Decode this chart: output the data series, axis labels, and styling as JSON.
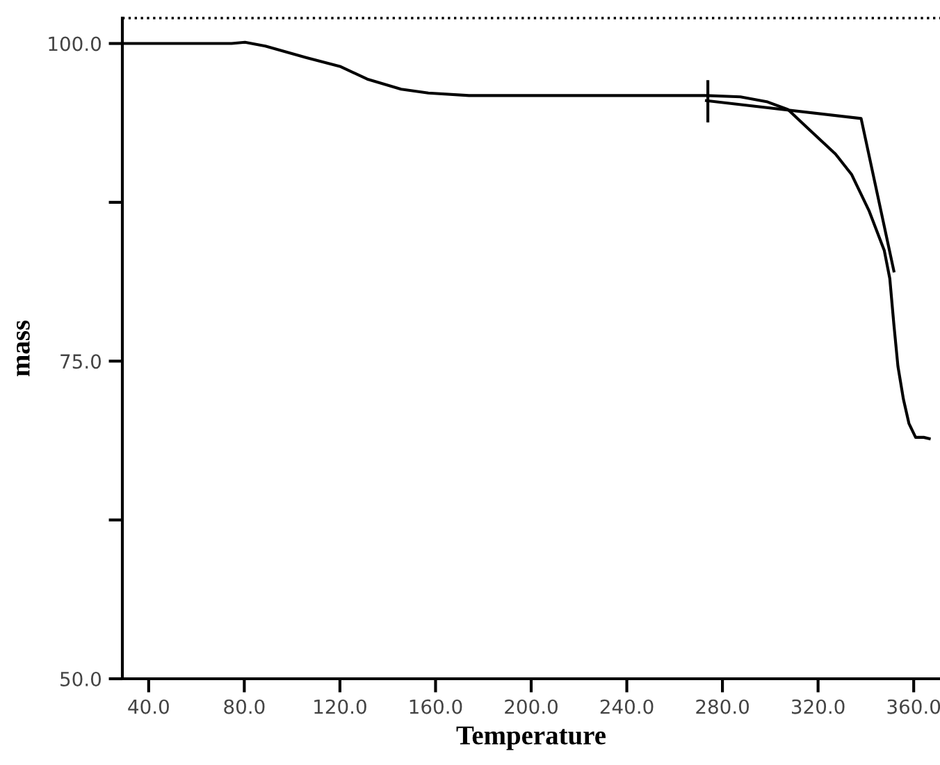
{
  "chart_data": {
    "type": "line",
    "xlabel": "Temperature",
    "ylabel": "mass",
    "xlim": [
      29,
      371
    ],
    "ylim": [
      50,
      102
    ],
    "xticks": [
      {
        "value": 40,
        "label": "40.0"
      },
      {
        "value": 80,
        "label": "80.0"
      },
      {
        "value": 120,
        "label": "120.0"
      },
      {
        "value": 160,
        "label": "160.0"
      },
      {
        "value": 200,
        "label": "200.0"
      },
      {
        "value": 240,
        "label": "240.0"
      },
      {
        "value": 280,
        "label": "280.0"
      },
      {
        "value": 320,
        "label": "320.0"
      },
      {
        "value": 360,
        "label": "360.0"
      }
    ],
    "yticks": [
      {
        "value": 50,
        "label": "50.0"
      },
      {
        "value": 62.5,
        "label": null
      },
      {
        "value": 75,
        "label": "75.0"
      },
      {
        "value": 87.5,
        "label": null
      },
      {
        "value": 100,
        "label": "100.0"
      }
    ],
    "grid": false,
    "legend": false,
    "marker": "none",
    "line_style": "solid",
    "ref_lines": [
      {
        "axis": "y",
        "value": 102,
        "color": "#000000",
        "line_style": "dotted"
      }
    ],
    "series": [
      {
        "color": "#000000",
        "x": [
          29.2,
          74.7,
          80.3,
          88.8,
          105.8,
          120,
          131.4,
          145.6,
          157,
          174,
          188,
          213.6,
          247.7,
          273.3,
          287.5,
          298.9,
          307.4,
          315.9,
          327.3,
          334,
          341.4,
          347.7,
          350,
          351.7,
          353.4,
          355.7,
          358,
          360.8,
          364.2,
          366.5
        ],
        "values": [
          100.0,
          100.0,
          100.1,
          99.8,
          98.9,
          98.2,
          97.2,
          96.4,
          96.1,
          95.9,
          95.9,
          95.9,
          95.9,
          95.9,
          95.8,
          95.4,
          94.8,
          93.3,
          91.3,
          89.7,
          86.8,
          83.7,
          81.5,
          77.9,
          74.6,
          72.0,
          70.1,
          69.0,
          69.0,
          68.9
        ]
      },
      {
        "color": "#000000",
        "x": [
          273.3,
          338,
          351.7
        ],
        "values": [
          95.5,
          94.1,
          82.1
        ]
      },
      {
        "color": "#000000",
        "x": [
          273.9,
          273.9
        ],
        "values": [
          97.0,
          93.9
        ]
      }
    ]
  }
}
